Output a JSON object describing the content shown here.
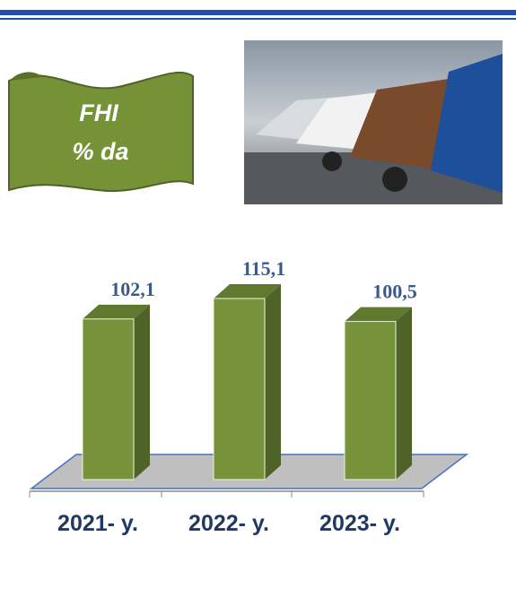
{
  "chart_data": {
    "type": "bar",
    "title": [
      "FHI",
      "% da"
    ],
    "categories": [
      "2021- y.",
      "2022- y.",
      "2023- y."
    ],
    "values": [
      102.1,
      115.1,
      100.5
    ],
    "value_labels": [
      "102,1",
      "115,1",
      "100,5"
    ],
    "color": "#76933c"
  }
}
